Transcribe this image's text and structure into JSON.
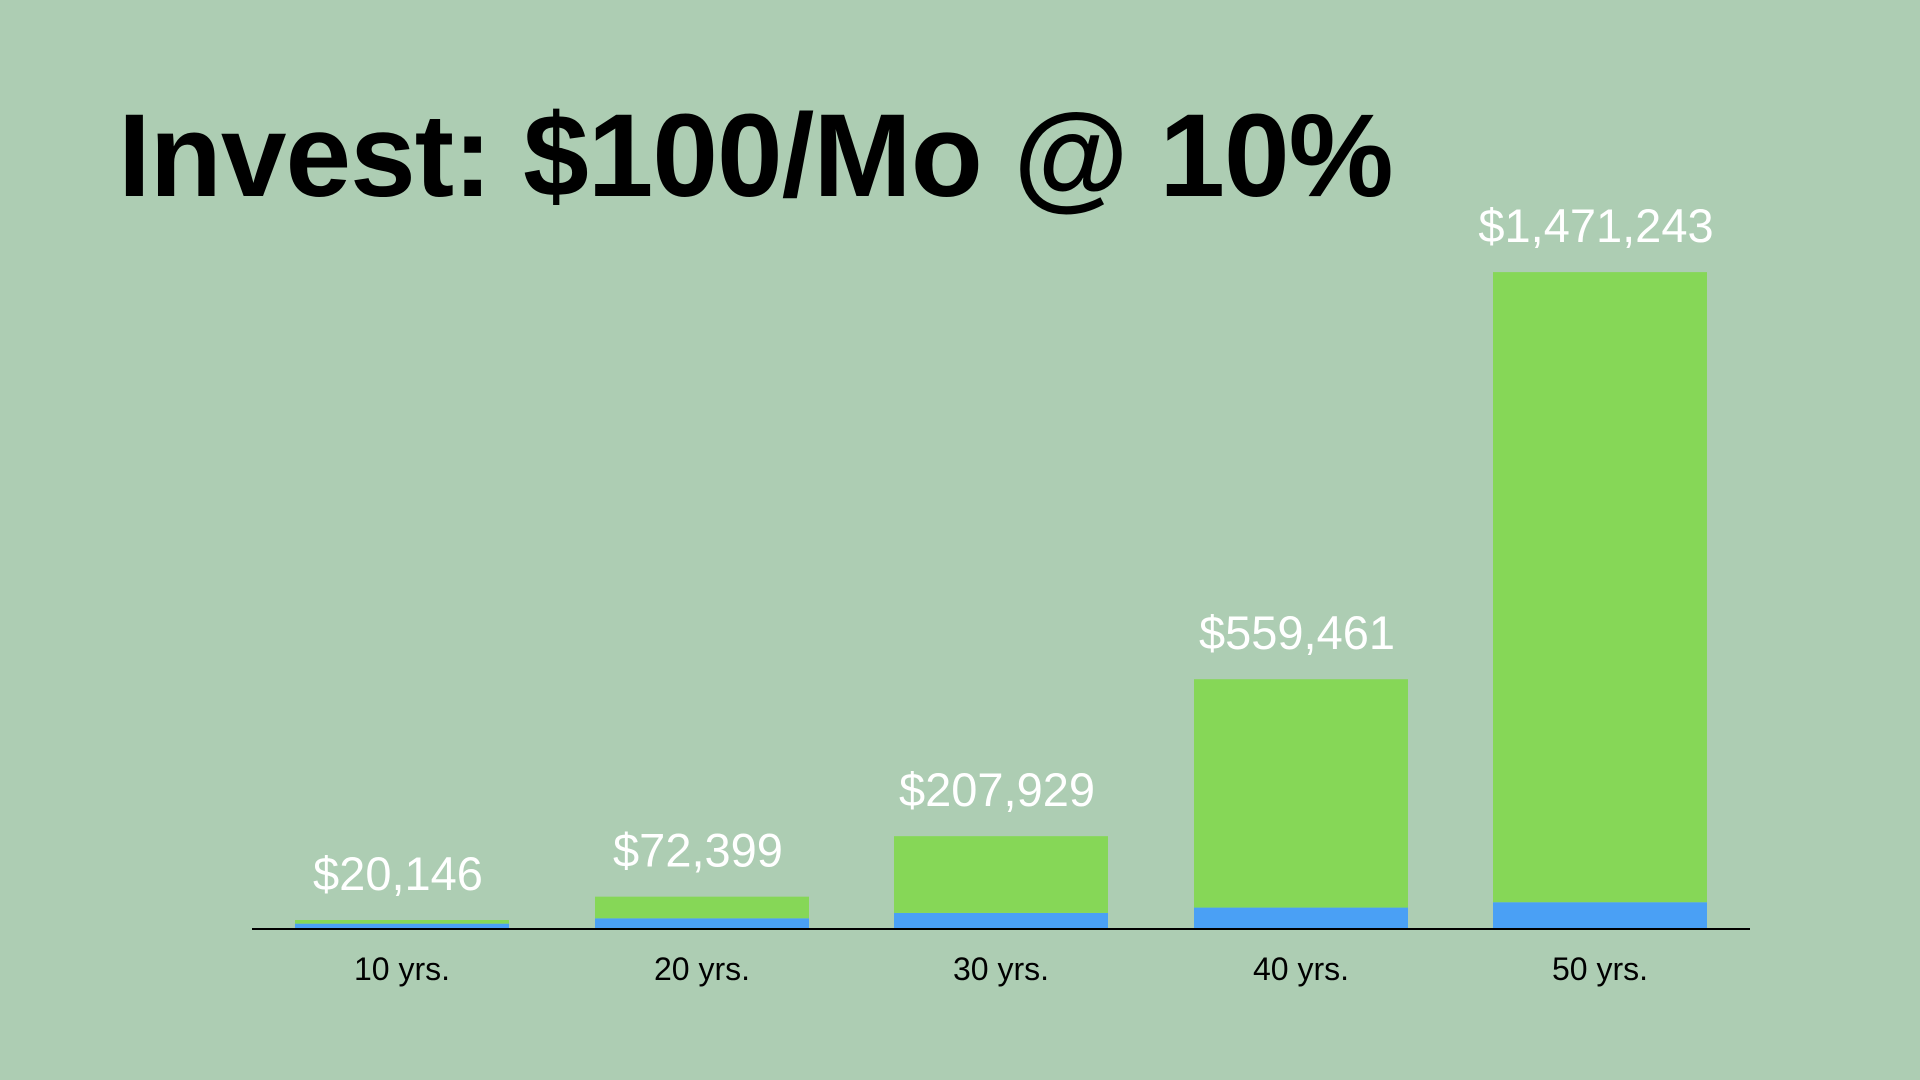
{
  "chart_data": {
    "type": "bar",
    "stacked": true,
    "title": "Invest: $100/Mo @ 10%",
    "xlabel": "",
    "ylabel": "",
    "categories": [
      "10 yrs.",
      "20 yrs.",
      "30 yrs.",
      "40 yrs.",
      "50 yrs."
    ],
    "series": [
      {
        "values": [
          12000,
          24000,
          36000,
          48000,
          60000
        ],
        "color": "#4aa0f5"
      },
      {
        "values": [
          8146,
          48399,
          171929,
          511461,
          1411243
        ],
        "color": "#86d757"
      }
    ],
    "totals": [
      20146,
      72399,
      207929,
      559461,
      1471243
    ],
    "total_labels": [
      "$20,146",
      "$72,399",
      "$207,929",
      "$559,461",
      "$1,471,243"
    ],
    "ylim": [
      0,
      1600000
    ],
    "grid": false,
    "legend": "none"
  }
}
